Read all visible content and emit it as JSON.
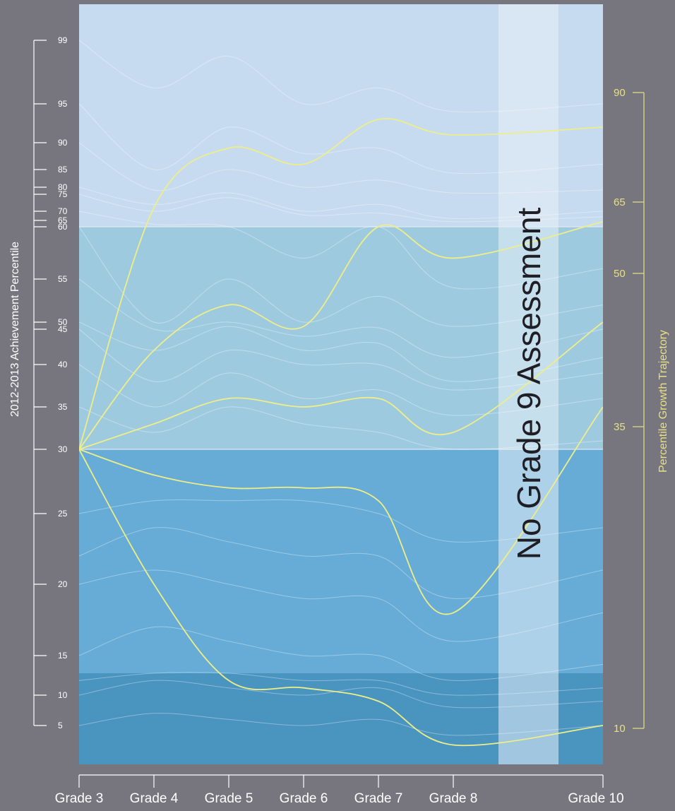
{
  "chart_data": {
    "type": "line",
    "title": "",
    "xlabel": "",
    "ylabel_left": "2012-2013 Achievement Percentile",
    "ylabel_right": "Percentile Growth Trajectory",
    "annotation": "No Grade 9 Assessment",
    "categories": [
      "Grade 3",
      "Grade 4",
      "Grade 5",
      "Grade 6",
      "Grade 7",
      "Grade 8",
      "Grade 9",
      "Grade 10"
    ],
    "x_tick_labels": [
      "Grade 3",
      "Grade 4",
      "Grade 5",
      "Grade 6",
      "Grade 7",
      "Grade 8",
      "Grade 10"
    ],
    "left_axis_ticks": [
      5,
      10,
      15,
      20,
      25,
      30,
      35,
      40,
      45,
      50,
      55,
      60,
      65,
      70,
      75,
      80,
      85,
      90,
      95,
      99
    ],
    "right_axis_ticks": [
      10,
      35,
      50,
      65,
      90
    ],
    "achievement_bands": [
      {
        "from": 1,
        "to": 13,
        "color": "#4a94c0"
      },
      {
        "from": 13,
        "to": 30,
        "color": "#66acd6"
      },
      {
        "from": 30,
        "to": 60,
        "color": "#9ecae0"
      },
      {
        "from": 60,
        "to": 100,
        "color": "#c7dbf0"
      }
    ],
    "colors": {
      "background": "#77767f",
      "trajectory": "#eeee88",
      "right_axis": "#e8e084",
      "axis_text": "#ffffff",
      "gap_band": "#e8f0f8"
    },
    "series": [
      {
        "growth_percentile": 90,
        "values": [
          30,
          71,
          89,
          86,
          93,
          91,
          null,
          92
        ]
      },
      {
        "growth_percentile": 65,
        "values": [
          30,
          42,
          52,
          47,
          60,
          57,
          null,
          64
        ]
      },
      {
        "growth_percentile": 50,
        "values": [
          30,
          33,
          36,
          35,
          36,
          32,
          null,
          50
        ]
      },
      {
        "growth_percentile": 35,
        "values": [
          30,
          28,
          27,
          27,
          26,
          18,
          null,
          35
        ]
      },
      {
        "growth_percentile": 10,
        "values": [
          30,
          20,
          12,
          11,
          9,
          3,
          null,
          5
        ]
      }
    ],
    "background_curves": [
      [
        99,
        96,
        98,
        95,
        96,
        94,
        null,
        95
      ],
      [
        95,
        85,
        92,
        88,
        89,
        84,
        null,
        86
      ],
      [
        90,
        78,
        85,
        80,
        82,
        76,
        null,
        78
      ],
      [
        80,
        72,
        76,
        70,
        72,
        66,
        null,
        70
      ],
      [
        75,
        70,
        74,
        68,
        69,
        64,
        null,
        67
      ],
      [
        70,
        62,
        60,
        57,
        60,
        54,
        null,
        56
      ],
      [
        60,
        50,
        55,
        50,
        53,
        47,
        null,
        52
      ],
      [
        55,
        45,
        50,
        44,
        46,
        41,
        null,
        45
      ],
      [
        50,
        42,
        47,
        42,
        43,
        38,
        null,
        41
      ],
      [
        45,
        38,
        42,
        40,
        40,
        37,
        null,
        39
      ],
      [
        40,
        35,
        39,
        36,
        37,
        34,
        null,
        36
      ],
      [
        35,
        32,
        35,
        33,
        32,
        30,
        null,
        31
      ],
      [
        25,
        26,
        26,
        26,
        25,
        23,
        null,
        24
      ],
      [
        22,
        24,
        23,
        22,
        22,
        19,
        null,
        21
      ],
      [
        20,
        21,
        20,
        19,
        19,
        16,
        null,
        18
      ],
      [
        15,
        17,
        16,
        15,
        15,
        12,
        null,
        14
      ],
      [
        12,
        13,
        13,
        12,
        12,
        10,
        null,
        11
      ],
      [
        10,
        12,
        11,
        10,
        11,
        8,
        null,
        9
      ],
      [
        5,
        7,
        6,
        5,
        6,
        4,
        null,
        5
      ]
    ]
  }
}
